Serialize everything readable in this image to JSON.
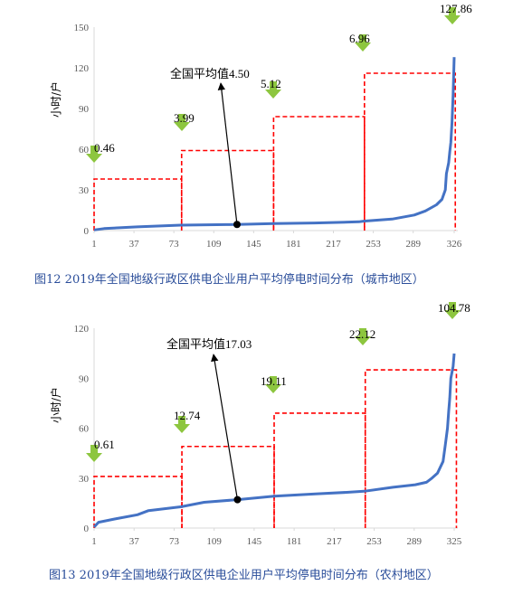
{
  "chart_data": [
    {
      "type": "line",
      "caption": "图12    2019年全国地级行政区供电企业用户平均停电时间分布（城市地区）",
      "ylabel": "小时/户",
      "ylim": [
        0,
        150
      ],
      "yticks": [
        0,
        30,
        60,
        90,
        120,
        150
      ],
      "xlim": [
        1,
        326
      ],
      "xticks": [
        1,
        37,
        73,
        109,
        145,
        181,
        217,
        253,
        289,
        326
      ],
      "series": [
        {
          "color": "#4472c4",
          "points": [
            [
              1,
              0.46
            ],
            [
              10,
              1.5
            ],
            [
              40,
              2.7
            ],
            [
              79,
              3.99
            ],
            [
              120,
              4.4
            ],
            [
              130,
              4.5
            ],
            [
              163,
              5.12
            ],
            [
              200,
              5.6
            ],
            [
              240,
              6.5
            ],
            [
              244,
              6.96
            ],
            [
              270,
              8.5
            ],
            [
              290,
              11.5
            ],
            [
              300,
              14.5
            ],
            [
              310,
              19
            ],
            [
              315,
              23
            ],
            [
              318,
              30
            ],
            [
              319,
              42
            ],
            [
              321,
              50
            ],
            [
              322,
              58
            ],
            [
              323,
              65
            ],
            [
              324,
              80
            ],
            [
              325,
              100
            ],
            [
              326,
              127.86
            ]
          ]
        }
      ],
      "mean_point": [
        130,
        4.5
      ],
      "mean_label": "全国平均值4.50",
      "levels": [
        {
          "label": "0.46",
          "x_start": 1,
          "x_end": 80,
          "height": 38
        },
        {
          "label": "3.99",
          "x_start": 80,
          "x_end": 163,
          "height": 59
        },
        {
          "label": "5.12",
          "x_start": 163,
          "x_end": 245,
          "height": 84
        },
        {
          "label": "6.96",
          "x_start": 245,
          "x_end": 327,
          "height": 116
        },
        {
          "label": "127.86",
          "x_start": 327,
          "x_end": 327,
          "height": null
        }
      ]
    },
    {
      "type": "line",
      "caption": "图13  2019年全国地级行政区供电企业用户平均停电时间分布（农村地区）",
      "ylabel": "小时/户",
      "ylim": [
        0,
        120
      ],
      "yticks": [
        0,
        30,
        60,
        90,
        120
      ],
      "xlim": [
        1,
        325
      ],
      "xticks": [
        1,
        37,
        73,
        109,
        145,
        181,
        217,
        253,
        289,
        325
      ],
      "series": [
        {
          "color": "#4472c4",
          "points": [
            [
              1,
              0.61
            ],
            [
              5,
              3.5
            ],
            [
              20,
              5.5
            ],
            [
              40,
              8
            ],
            [
              50,
              10.5
            ],
            [
              79,
              12.74
            ],
            [
              100,
              15.5
            ],
            [
              130,
              17.03
            ],
            [
              163,
              19.11
            ],
            [
              200,
              20.5
            ],
            [
              230,
              21.5
            ],
            [
              244,
              22.12
            ],
            [
              270,
              24.5
            ],
            [
              290,
              26
            ],
            [
              300,
              27.5
            ],
            [
              305,
              30
            ],
            [
              310,
              33
            ],
            [
              315,
              40
            ],
            [
              317,
              50
            ],
            [
              319,
              60
            ],
            [
              320,
              70
            ],
            [
              321,
              78
            ],
            [
              322,
              90
            ],
            [
              324,
              97
            ],
            [
              325,
              104.78
            ]
          ]
        }
      ],
      "mean_point": [
        130,
        17.03
      ],
      "mean_label": "全国平均值17.03",
      "levels": [
        {
          "label": "0.61",
          "x_start": 1,
          "x_end": 80,
          "height": 31
        },
        {
          "label": "12.74",
          "x_start": 80,
          "x_end": 163,
          "height": 49
        },
        {
          "label": "19.11",
          "x_start": 163,
          "x_end": 245,
          "height": 69
        },
        {
          "label": "22.12",
          "x_start": 245,
          "x_end": 327,
          "height": 95
        },
        {
          "label": "104.78",
          "x_start": 327,
          "x_end": 327,
          "height": null
        }
      ]
    }
  ],
  "colors": {
    "line": "#4472c4",
    "dashed_box": "#ff0000",
    "arrow": "#8dc63f",
    "axis": "#d9d9d9",
    "caption": "#2a4d9a"
  }
}
